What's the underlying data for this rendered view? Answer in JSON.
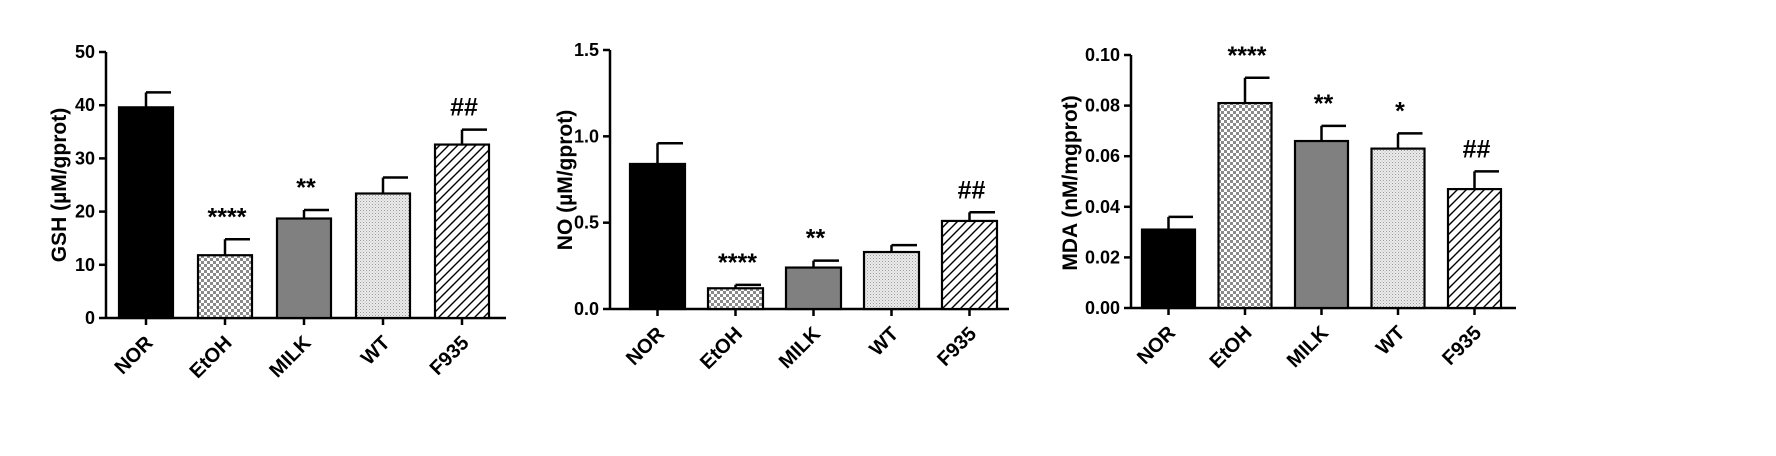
{
  "chart_data": [
    {
      "type": "bar",
      "categories": [
        "NOR",
        "EtOH",
        "MILK",
        "WT",
        "F935"
      ],
      "values": [
        39.6,
        11.8,
        18.7,
        23.4,
        32.6
      ],
      "errors": [
        2.8,
        3.0,
        1.6,
        3.0,
        2.8
      ],
      "significance": [
        "",
        "****",
        "**",
        "",
        "##"
      ],
      "ylabel": "GSH (µM/gprot)",
      "ylim": [
        0,
        50
      ],
      "yticks": [
        "0",
        "10",
        "20",
        "30",
        "40",
        "50"
      ],
      "ytick_values": [
        0,
        10,
        20,
        30,
        40,
        50
      ]
    },
    {
      "type": "bar",
      "categories": [
        "NOR",
        "EtOH",
        "MILK",
        "WT",
        "F935"
      ],
      "values": [
        0.84,
        0.12,
        0.24,
        0.33,
        0.51
      ],
      "errors": [
        0.12,
        0.02,
        0.04,
        0.04,
        0.05
      ],
      "significance": [
        "",
        "****",
        "**",
        "",
        "##"
      ],
      "ylabel": "NO (µM/gprot)",
      "ylim": [
        0,
        1.5
      ],
      "yticks": [
        "0.0",
        "0.5",
        "1.0",
        "1.5"
      ],
      "ytick_values": [
        0,
        0.5,
        1.0,
        1.5
      ]
    },
    {
      "type": "bar",
      "categories": [
        "NOR",
        "EtOH",
        "MILK",
        "WT",
        "F935"
      ],
      "values": [
        0.031,
        0.081,
        0.066,
        0.063,
        0.047
      ],
      "errors": [
        0.005,
        0.01,
        0.006,
        0.006,
        0.007
      ],
      "significance": [
        "",
        "****",
        "**",
        "*",
        "##"
      ],
      "ylabel": "MDA (nM/mgprot)",
      "ylim": [
        0,
        0.1
      ],
      "yticks": [
        "0.00",
        "0.02",
        "0.04",
        "0.06",
        "0.08",
        "0.10"
      ],
      "ytick_values": [
        0,
        0.02,
        0.04,
        0.06,
        0.08,
        0.1
      ]
    }
  ],
  "bar_styles": [
    "solid-black",
    "crosshatch",
    "solid-gray",
    "fine-dots",
    "diagonal-lines"
  ]
}
